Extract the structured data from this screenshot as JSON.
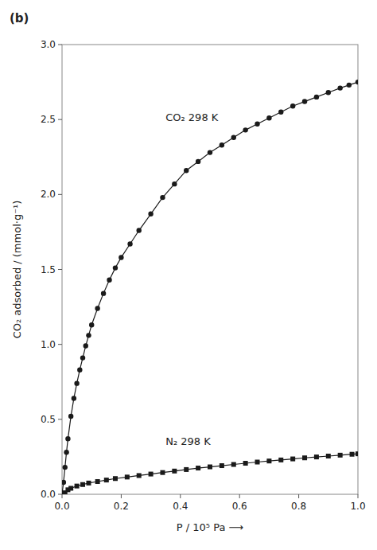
{
  "chart_data": {
    "type": "line",
    "title": "(b)",
    "x_label": "P / 10⁵ Pa ⟶",
    "y_label": "CO₂ adsorbed / (mmol·g⁻¹)",
    "series": [
      {
        "name": "CO₂ 298 K",
        "color": "#1a1a1a",
        "marker": "circle",
        "x": [
          0.0,
          0.005,
          0.01,
          0.015,
          0.02,
          0.03,
          0.04,
          0.05,
          0.06,
          0.07,
          0.08,
          0.09,
          0.1,
          0.12,
          0.14,
          0.16,
          0.18,
          0.2,
          0.23,
          0.26,
          0.3,
          0.34,
          0.38,
          0.42,
          0.46,
          0.5,
          0.54,
          0.58,
          0.62,
          0.66,
          0.7,
          0.74,
          0.78,
          0.82,
          0.86,
          0.9,
          0.94,
          0.97,
          1.0
        ],
        "values": [
          0.0,
          0.08,
          0.18,
          0.28,
          0.37,
          0.52,
          0.64,
          0.74,
          0.83,
          0.91,
          0.99,
          1.06,
          1.13,
          1.24,
          1.34,
          1.43,
          1.51,
          1.58,
          1.67,
          1.76,
          1.87,
          1.98,
          2.07,
          2.16,
          2.22,
          2.28,
          2.33,
          2.38,
          2.43,
          2.47,
          2.51,
          2.55,
          2.59,
          2.62,
          2.65,
          2.68,
          2.71,
          2.73,
          2.75
        ]
      },
      {
        "name": "N₂ 298 K",
        "color": "#1a1a1a",
        "marker": "square",
        "x": [
          0.0,
          0.01,
          0.02,
          0.03,
          0.05,
          0.07,
          0.09,
          0.12,
          0.15,
          0.18,
          0.22,
          0.26,
          0.3,
          0.34,
          0.38,
          0.42,
          0.46,
          0.5,
          0.54,
          0.58,
          0.62,
          0.66,
          0.7,
          0.74,
          0.78,
          0.82,
          0.86,
          0.9,
          0.94,
          0.98,
          1.0
        ],
        "values": [
          0.0,
          0.01,
          0.03,
          0.04,
          0.055,
          0.065,
          0.075,
          0.085,
          0.095,
          0.105,
          0.115,
          0.125,
          0.135,
          0.145,
          0.155,
          0.165,
          0.175,
          0.183,
          0.191,
          0.199,
          0.207,
          0.215,
          0.222,
          0.229,
          0.236,
          0.243,
          0.249,
          0.255,
          0.261,
          0.267,
          0.27
        ]
      }
    ],
    "xlim": [
      0,
      1.0
    ],
    "ylim": [
      0,
      3.0
    ],
    "xticks": [
      {
        "value": 0,
        "label": "0.0"
      },
      0.2,
      0.4,
      0.6,
      0.8,
      {
        "value": 1.0,
        "label": "1.0"
      }
    ],
    "yticks": [
      {
        "value": 0,
        "label": "0.0"
      },
      0.5,
      {
        "value": 1.0,
        "label": "1.0"
      },
      1.5,
      {
        "value": 2.0,
        "label": "2.0"
      },
      2.5,
      {
        "value": 3.0,
        "label": "3.0"
      }
    ]
  }
}
